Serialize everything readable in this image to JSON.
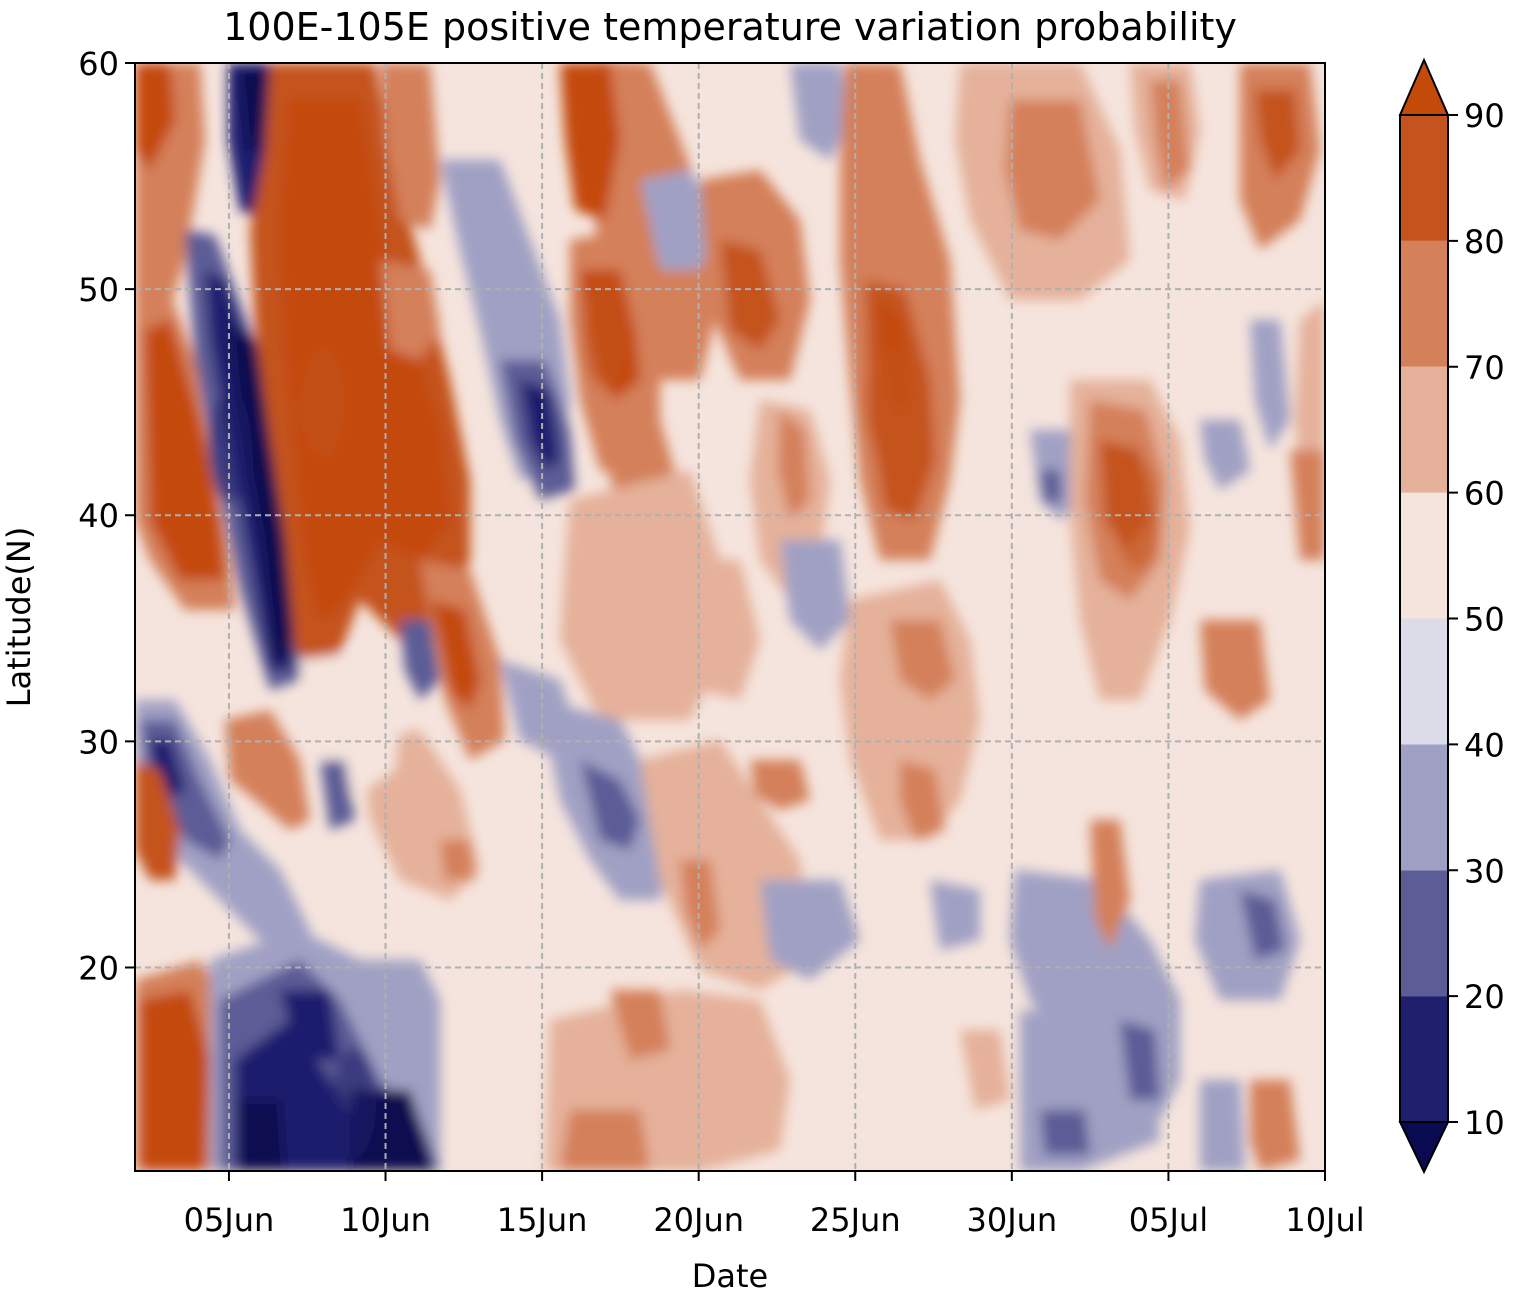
{
  "chart_data": {
    "type": "heatmap",
    "subtype": "filled-contour",
    "title": "100E-105E positive temperature variation probability",
    "xlabel": "Date",
    "ylabel": "Latitude(N)",
    "x_ticks": [
      "05Jun",
      "10Jun",
      "15Jun",
      "20Jun",
      "25Jun",
      "30Jun",
      "05Jul",
      "10Jul"
    ],
    "x_tick_dates": [
      "2000-06-05",
      "2000-06-10",
      "2000-06-15",
      "2000-06-20",
      "2000-06-25",
      "2000-06-30",
      "2000-07-05",
      "2000-07-10"
    ],
    "xlim": [
      "2000-06-02",
      "2000-07-10"
    ],
    "y_ticks": [
      20,
      30,
      40,
      50,
      60
    ],
    "ylim": [
      11,
      60
    ],
    "grid": true,
    "colorbar": {
      "ticks": [
        10,
        20,
        30,
        40,
        50,
        60,
        70,
        80,
        90
      ],
      "levels": [
        10,
        20,
        30,
        40,
        50,
        60,
        70,
        80,
        90
      ],
      "extend": "both",
      "colors": [
        "#0a0a50",
        "#1f1f6e",
        "#5c5c96",
        "#a0a0c4",
        "#dcdce8",
        "#f5e4dd",
        "#e5b19a",
        "#d4805a",
        "#c4531d",
        "#c44a0a"
      ]
    },
    "features": [
      {
        "label": "warm band early June",
        "date": "2000-06-08",
        "lat": 45,
        "value": 85
      },
      {
        "label": "cold band early June",
        "date": "2000-06-05",
        "lat": 43,
        "value": 15
      },
      {
        "label": "cold southern area",
        "date": "2000-06-09",
        "lat": 14,
        "value": 15
      },
      {
        "label": "warm band mid June",
        "date": "2000-06-17",
        "lat": 48,
        "value": 85
      },
      {
        "label": "warm band late June",
        "date": "2000-06-26",
        "lat": 45,
        "value": 82
      },
      {
        "label": "warm area early July",
        "date": "2000-07-04",
        "lat": 40,
        "value": 82
      }
    ]
  }
}
